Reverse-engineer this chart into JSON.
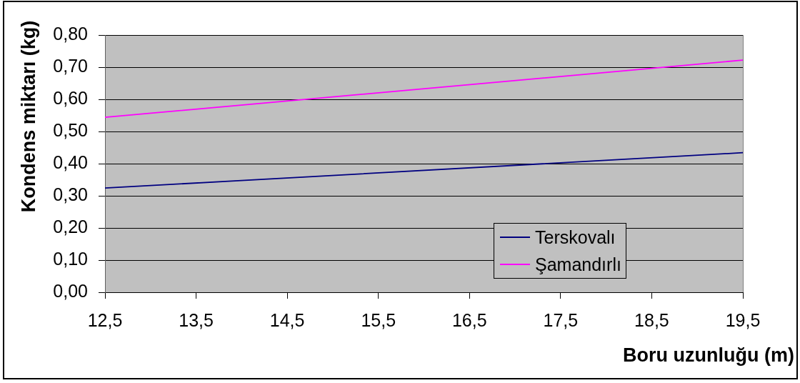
{
  "chart_data": {
    "type": "line",
    "xlabel": "Boru uzunluğu (m)",
    "ylabel": "Kondens miktarı (kg)",
    "x": [
      12.5,
      19.5
    ],
    "series": [
      {
        "name": "Terskovalı",
        "color": "#000080",
        "values": [
          0.324,
          0.434
        ]
      },
      {
        "name": "Şamandırlı",
        "color": "#ff00ff",
        "values": [
          0.544,
          0.722
        ]
      }
    ],
    "xlim": [
      12.5,
      19.5
    ],
    "xticks": [
      {
        "value": 12.5,
        "label": "12,5"
      },
      {
        "value": 13.5,
        "label": "13,5"
      },
      {
        "value": 14.5,
        "label": "14,5"
      },
      {
        "value": 15.5,
        "label": "15,5"
      },
      {
        "value": 16.5,
        "label": "16,5"
      },
      {
        "value": 17.5,
        "label": "17,5"
      },
      {
        "value": 18.5,
        "label": "18,5"
      },
      {
        "value": 19.5,
        "label": "19,5"
      }
    ],
    "ylim": [
      0,
      0.8
    ],
    "yticks": [
      {
        "value": 0,
        "label": "0,00"
      },
      {
        "value": 0.1,
        "label": "0,10"
      },
      {
        "value": 0.2,
        "label": "0,20"
      },
      {
        "value": 0.3,
        "label": "0,30"
      },
      {
        "value": 0.4,
        "label": "0,40"
      },
      {
        "value": 0.5,
        "label": "0,50"
      },
      {
        "value": 0.6,
        "label": "0,60"
      },
      {
        "value": 0.7,
        "label": "0,70"
      },
      {
        "value": 0.8,
        "label": "0,80"
      }
    ],
    "grid": "y",
    "legend": "bottom right",
    "marker": "none",
    "line_style": "solid"
  }
}
